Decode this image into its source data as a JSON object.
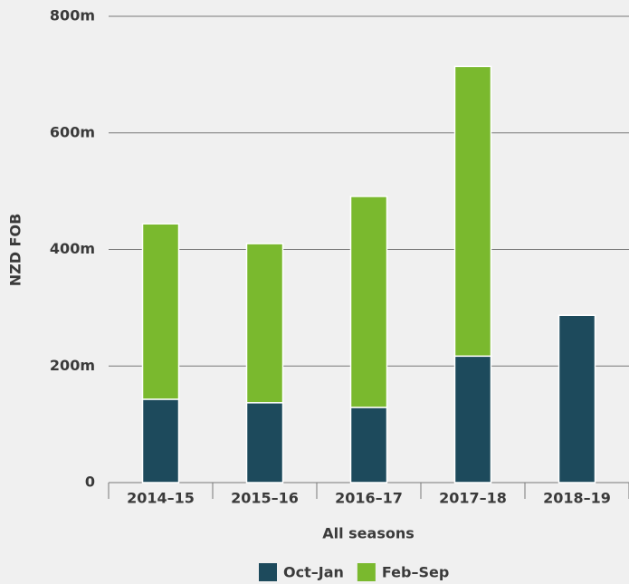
{
  "chart_data": {
    "type": "bar",
    "stacked": true,
    "categories": [
      "2014–15",
      "2015–16",
      "2016–17",
      "2017–18",
      "2018–19"
    ],
    "series": [
      {
        "name": "Oct–Jan",
        "color": "#1d4a5c",
        "values": [
          143,
          137,
          129,
          217,
          287
        ]
      },
      {
        "name": "Feb–Sep",
        "color": "#7ab92e",
        "values": [
          301,
          273,
          362,
          497,
          null
        ]
      }
    ],
    "ylim": [
      0,
      800
    ],
    "yticks": [
      0,
      {
        "value": 200,
        "label": "200m"
      },
      {
        "value": 400,
        "label": "400m"
      },
      {
        "value": 600,
        "label": "600m"
      },
      {
        "value": 800,
        "label": "800m"
      }
    ],
    "y_label": "NZD FOB",
    "x_label": "All seasons",
    "grid": true,
    "legend": "bottom"
  }
}
